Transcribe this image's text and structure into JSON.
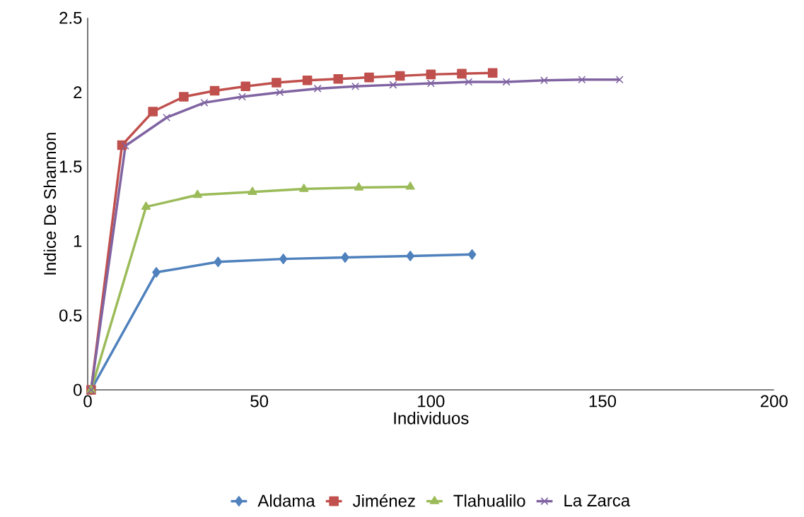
{
  "chart_data": {
    "type": "line",
    "xlabel": "Individuos",
    "ylabel": "Indice De Shannon",
    "xlim": [
      0,
      200
    ],
    "xticks": [
      0,
      50,
      100,
      150,
      200
    ],
    "ylim": [
      0,
      2.5
    ],
    "yticks": [
      0,
      0.5,
      1,
      1.5,
      2,
      2.5
    ],
    "grid": false,
    "legend": "bottom",
    "series": [
      {
        "name": "Aldama",
        "color": "#4f81bd",
        "marker": "diamond",
        "x": [
          1,
          20,
          38,
          57,
          75,
          94,
          112
        ],
        "values": [
          0,
          0.79,
          0.86,
          0.88,
          0.89,
          0.9,
          0.91
        ]
      },
      {
        "name": "Jiménez",
        "color": "#c0504d",
        "marker": "square",
        "x": [
          1,
          10,
          19,
          28,
          37,
          46,
          55,
          64,
          73,
          82,
          91,
          100,
          109,
          118
        ],
        "values": [
          0,
          1.645,
          1.87,
          1.97,
          2.01,
          2.04,
          2.065,
          2.08,
          2.09,
          2.1,
          2.11,
          2.12,
          2.125,
          2.13
        ]
      },
      {
        "name": "Tlahualilo",
        "color": "#9bbb59",
        "marker": "triangle",
        "x": [
          1,
          17,
          32,
          48,
          63,
          79,
          94
        ],
        "values": [
          0,
          1.23,
          1.31,
          1.33,
          1.35,
          1.36,
          1.365
        ]
      },
      {
        "name": "La Zarca",
        "color": "#8064a2",
        "marker": "cross",
        "x": [
          1,
          11,
          23,
          34,
          45,
          56,
          67,
          78,
          89,
          100,
          111,
          122,
          133,
          144,
          155
        ],
        "values": [
          0,
          1.64,
          1.83,
          1.93,
          1.97,
          2.0,
          2.025,
          2.04,
          2.05,
          2.06,
          2.07,
          2.07,
          2.08,
          2.085,
          2.085
        ]
      }
    ]
  }
}
